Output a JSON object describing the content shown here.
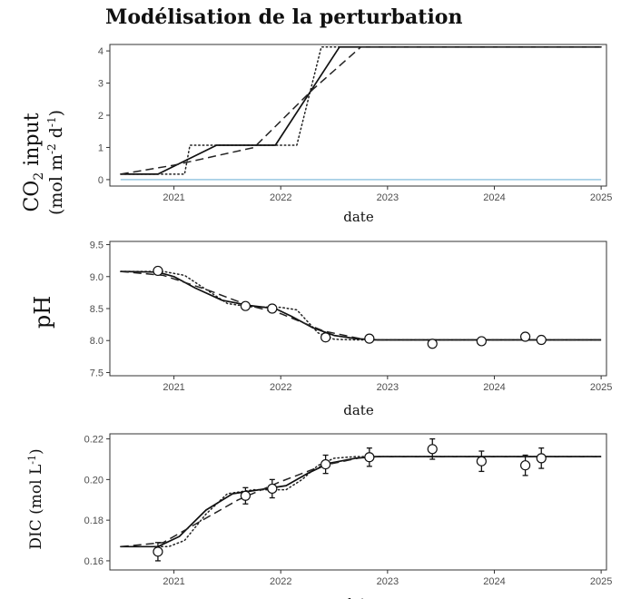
{
  "title": "Modélisation de la perturbation",
  "chart_data": [
    {
      "id": "co2",
      "type": "line",
      "title": "",
      "xlabel": "date",
      "ylabel": "CO2 input (mol m-2 d-1)",
      "ylabel_parts": {
        "line1_a": "CO",
        "line1_sub": "2",
        "line1_b": " input",
        "line2_a": "(mol m",
        "line2_sup1": "-2",
        "line2_b": " d",
        "line2_sup2": "-1",
        "line2_c": ")"
      },
      "xlim": [
        2020.4,
        2025.05
      ],
      "ylim": [
        -0.2,
        4.2
      ],
      "xticks": [
        2021,
        2022,
        2023,
        2024,
        2025
      ],
      "yticks": [
        0,
        1,
        2,
        3,
        4
      ],
      "xtick_labels": [
        "2021",
        "2022",
        "2023",
        "2024",
        "2025"
      ],
      "ytick_labels": [
        "0",
        "1",
        "2",
        "3",
        "4"
      ],
      "series": [
        {
          "name": "baseline",
          "style": "solid",
          "color": "#a6cfe6",
          "x": [
            2020.5,
            2025.0
          ],
          "y": [
            0,
            0
          ]
        },
        {
          "name": "dotted",
          "style": "dotted",
          "color": "#222222",
          "x": [
            2020.5,
            2021.1,
            2021.15,
            2021.95,
            2022.15,
            2022.38,
            2022.4,
            2025.0
          ],
          "y": [
            0.17,
            0.17,
            1.07,
            1.07,
            1.07,
            4.12,
            4.12,
            4.12
          ]
        },
        {
          "name": "solid",
          "style": "solid",
          "color": "#111111",
          "x": [
            2020.5,
            2020.85,
            2021.4,
            2021.95,
            2022.55,
            2025.0
          ],
          "y": [
            0.17,
            0.17,
            1.07,
            1.07,
            4.12,
            4.12
          ]
        },
        {
          "name": "dashed",
          "style": "dashed",
          "color": "#222222",
          "x": [
            2020.5,
            2021.0,
            2021.75,
            2022.3,
            2022.75,
            2025.0
          ],
          "y": [
            0.17,
            0.45,
            1.0,
            2.8,
            4.12,
            4.12
          ]
        }
      ],
      "points": []
    },
    {
      "id": "ph",
      "type": "line",
      "title": "",
      "xlabel": "date",
      "ylabel": "pH",
      "xlim": [
        2020.4,
        2025.05
      ],
      "ylim": [
        7.45,
        9.55
      ],
      "xticks": [
        2021,
        2022,
        2023,
        2024,
        2025
      ],
      "yticks": [
        7.5,
        8.0,
        8.5,
        9.0,
        9.5
      ],
      "xtick_labels": [
        "2021",
        "2022",
        "2023",
        "2024",
        "2025"
      ],
      "ytick_labels": [
        "7.5",
        "8.0",
        "8.5",
        "9.0",
        "9.5"
      ],
      "series": [
        {
          "name": "dotted",
          "style": "dotted",
          "color": "#222222",
          "x": [
            2020.5,
            2020.9,
            2021.1,
            2021.3,
            2021.5,
            2021.7,
            2022.0,
            2022.15,
            2022.25,
            2022.35,
            2022.5,
            2022.7,
            2025.0
          ],
          "y": [
            9.08,
            9.08,
            9.02,
            8.8,
            8.58,
            8.53,
            8.52,
            8.48,
            8.3,
            8.12,
            8.02,
            8.01,
            8.01
          ]
        },
        {
          "name": "solid",
          "style": "solid",
          "color": "#111111",
          "x": [
            2020.5,
            2020.85,
            2021.0,
            2021.2,
            2021.45,
            2021.7,
            2021.95,
            2022.1,
            2022.3,
            2022.5,
            2022.7,
            2022.9,
            2025.0
          ],
          "y": [
            9.08,
            9.07,
            9.0,
            8.82,
            8.63,
            8.55,
            8.5,
            8.38,
            8.2,
            8.08,
            8.03,
            8.01,
            8.01
          ]
        },
        {
          "name": "dashed",
          "style": "dashed",
          "color": "#222222",
          "x": [
            2020.5,
            2020.9,
            2021.3,
            2021.7,
            2022.0,
            2022.4,
            2022.8,
            2025.0
          ],
          "y": [
            9.08,
            9.02,
            8.8,
            8.55,
            8.42,
            8.15,
            8.01,
            8.01
          ]
        }
      ],
      "points": [
        {
          "x": 2020.85,
          "y": 9.09
        },
        {
          "x": 2021.67,
          "y": 8.54
        },
        {
          "x": 2021.92,
          "y": 8.5
        },
        {
          "x": 2022.42,
          "y": 8.05
        },
        {
          "x": 2022.83,
          "y": 8.03
        },
        {
          "x": 2023.42,
          "y": 7.95
        },
        {
          "x": 2023.88,
          "y": 7.99
        },
        {
          "x": 2024.29,
          "y": 8.06
        },
        {
          "x": 2024.44,
          "y": 8.01
        }
      ]
    },
    {
      "id": "dic",
      "type": "line",
      "title": "",
      "xlabel": "date",
      "ylabel": "DIC (mol L-1)",
      "ylabel_parts": {
        "a": "DIC (mol L",
        "sup": "-1",
        "b": ")"
      },
      "xlim": [
        2020.4,
        2025.05
      ],
      "ylim": [
        0.1555,
        0.2225
      ],
      "xticks": [
        2021,
        2022,
        2023,
        2024,
        2025
      ],
      "yticks": [
        0.16,
        0.18,
        0.2,
        0.22
      ],
      "xtick_labels": [
        "2021",
        "2022",
        "2023",
        "2024",
        "2025"
      ],
      "ytick_labels": [
        "0.16",
        "0.18",
        "0.20",
        "0.22"
      ],
      "series": [
        {
          "name": "dotted",
          "style": "dotted",
          "color": "#222222",
          "x": [
            2020.5,
            2020.95,
            2021.1,
            2021.3,
            2021.5,
            2021.75,
            2022.05,
            2022.2,
            2022.35,
            2022.5,
            2022.7,
            2025.0
          ],
          "y": [
            0.167,
            0.167,
            0.17,
            0.183,
            0.193,
            0.195,
            0.195,
            0.2,
            0.207,
            0.2105,
            0.2113,
            0.2113
          ]
        },
        {
          "name": "solid",
          "style": "solid",
          "color": "#111111",
          "x": [
            2020.5,
            2020.85,
            2021.05,
            2021.3,
            2021.55,
            2021.8,
            2022.05,
            2022.25,
            2022.45,
            2022.7,
            2022.9,
            2025.0
          ],
          "y": [
            0.167,
            0.167,
            0.172,
            0.185,
            0.193,
            0.195,
            0.197,
            0.203,
            0.208,
            0.2105,
            0.2113,
            0.2113
          ]
        },
        {
          "name": "dashed",
          "style": "dashed",
          "color": "#222222",
          "x": [
            2020.5,
            2020.9,
            2021.2,
            2021.6,
            2022.0,
            2022.4,
            2022.8,
            2025.0
          ],
          "y": [
            0.167,
            0.169,
            0.178,
            0.19,
            0.199,
            0.207,
            0.2113,
            0.2113
          ]
        }
      ],
      "points": [
        {
          "x": 2020.85,
          "y": 0.1645,
          "err": 0.0045
        },
        {
          "x": 2021.67,
          "y": 0.192,
          "err": 0.004
        },
        {
          "x": 2021.92,
          "y": 0.1955,
          "err": 0.0045
        },
        {
          "x": 2022.42,
          "y": 0.2075,
          "err": 0.0045
        },
        {
          "x": 2022.83,
          "y": 0.211,
          "err": 0.0045
        },
        {
          "x": 2023.42,
          "y": 0.215,
          "err": 0.005
        },
        {
          "x": 2023.88,
          "y": 0.209,
          "err": 0.005
        },
        {
          "x": 2024.29,
          "y": 0.207,
          "err": 0.005
        },
        {
          "x": 2024.44,
          "y": 0.2105,
          "err": 0.005
        }
      ]
    }
  ]
}
